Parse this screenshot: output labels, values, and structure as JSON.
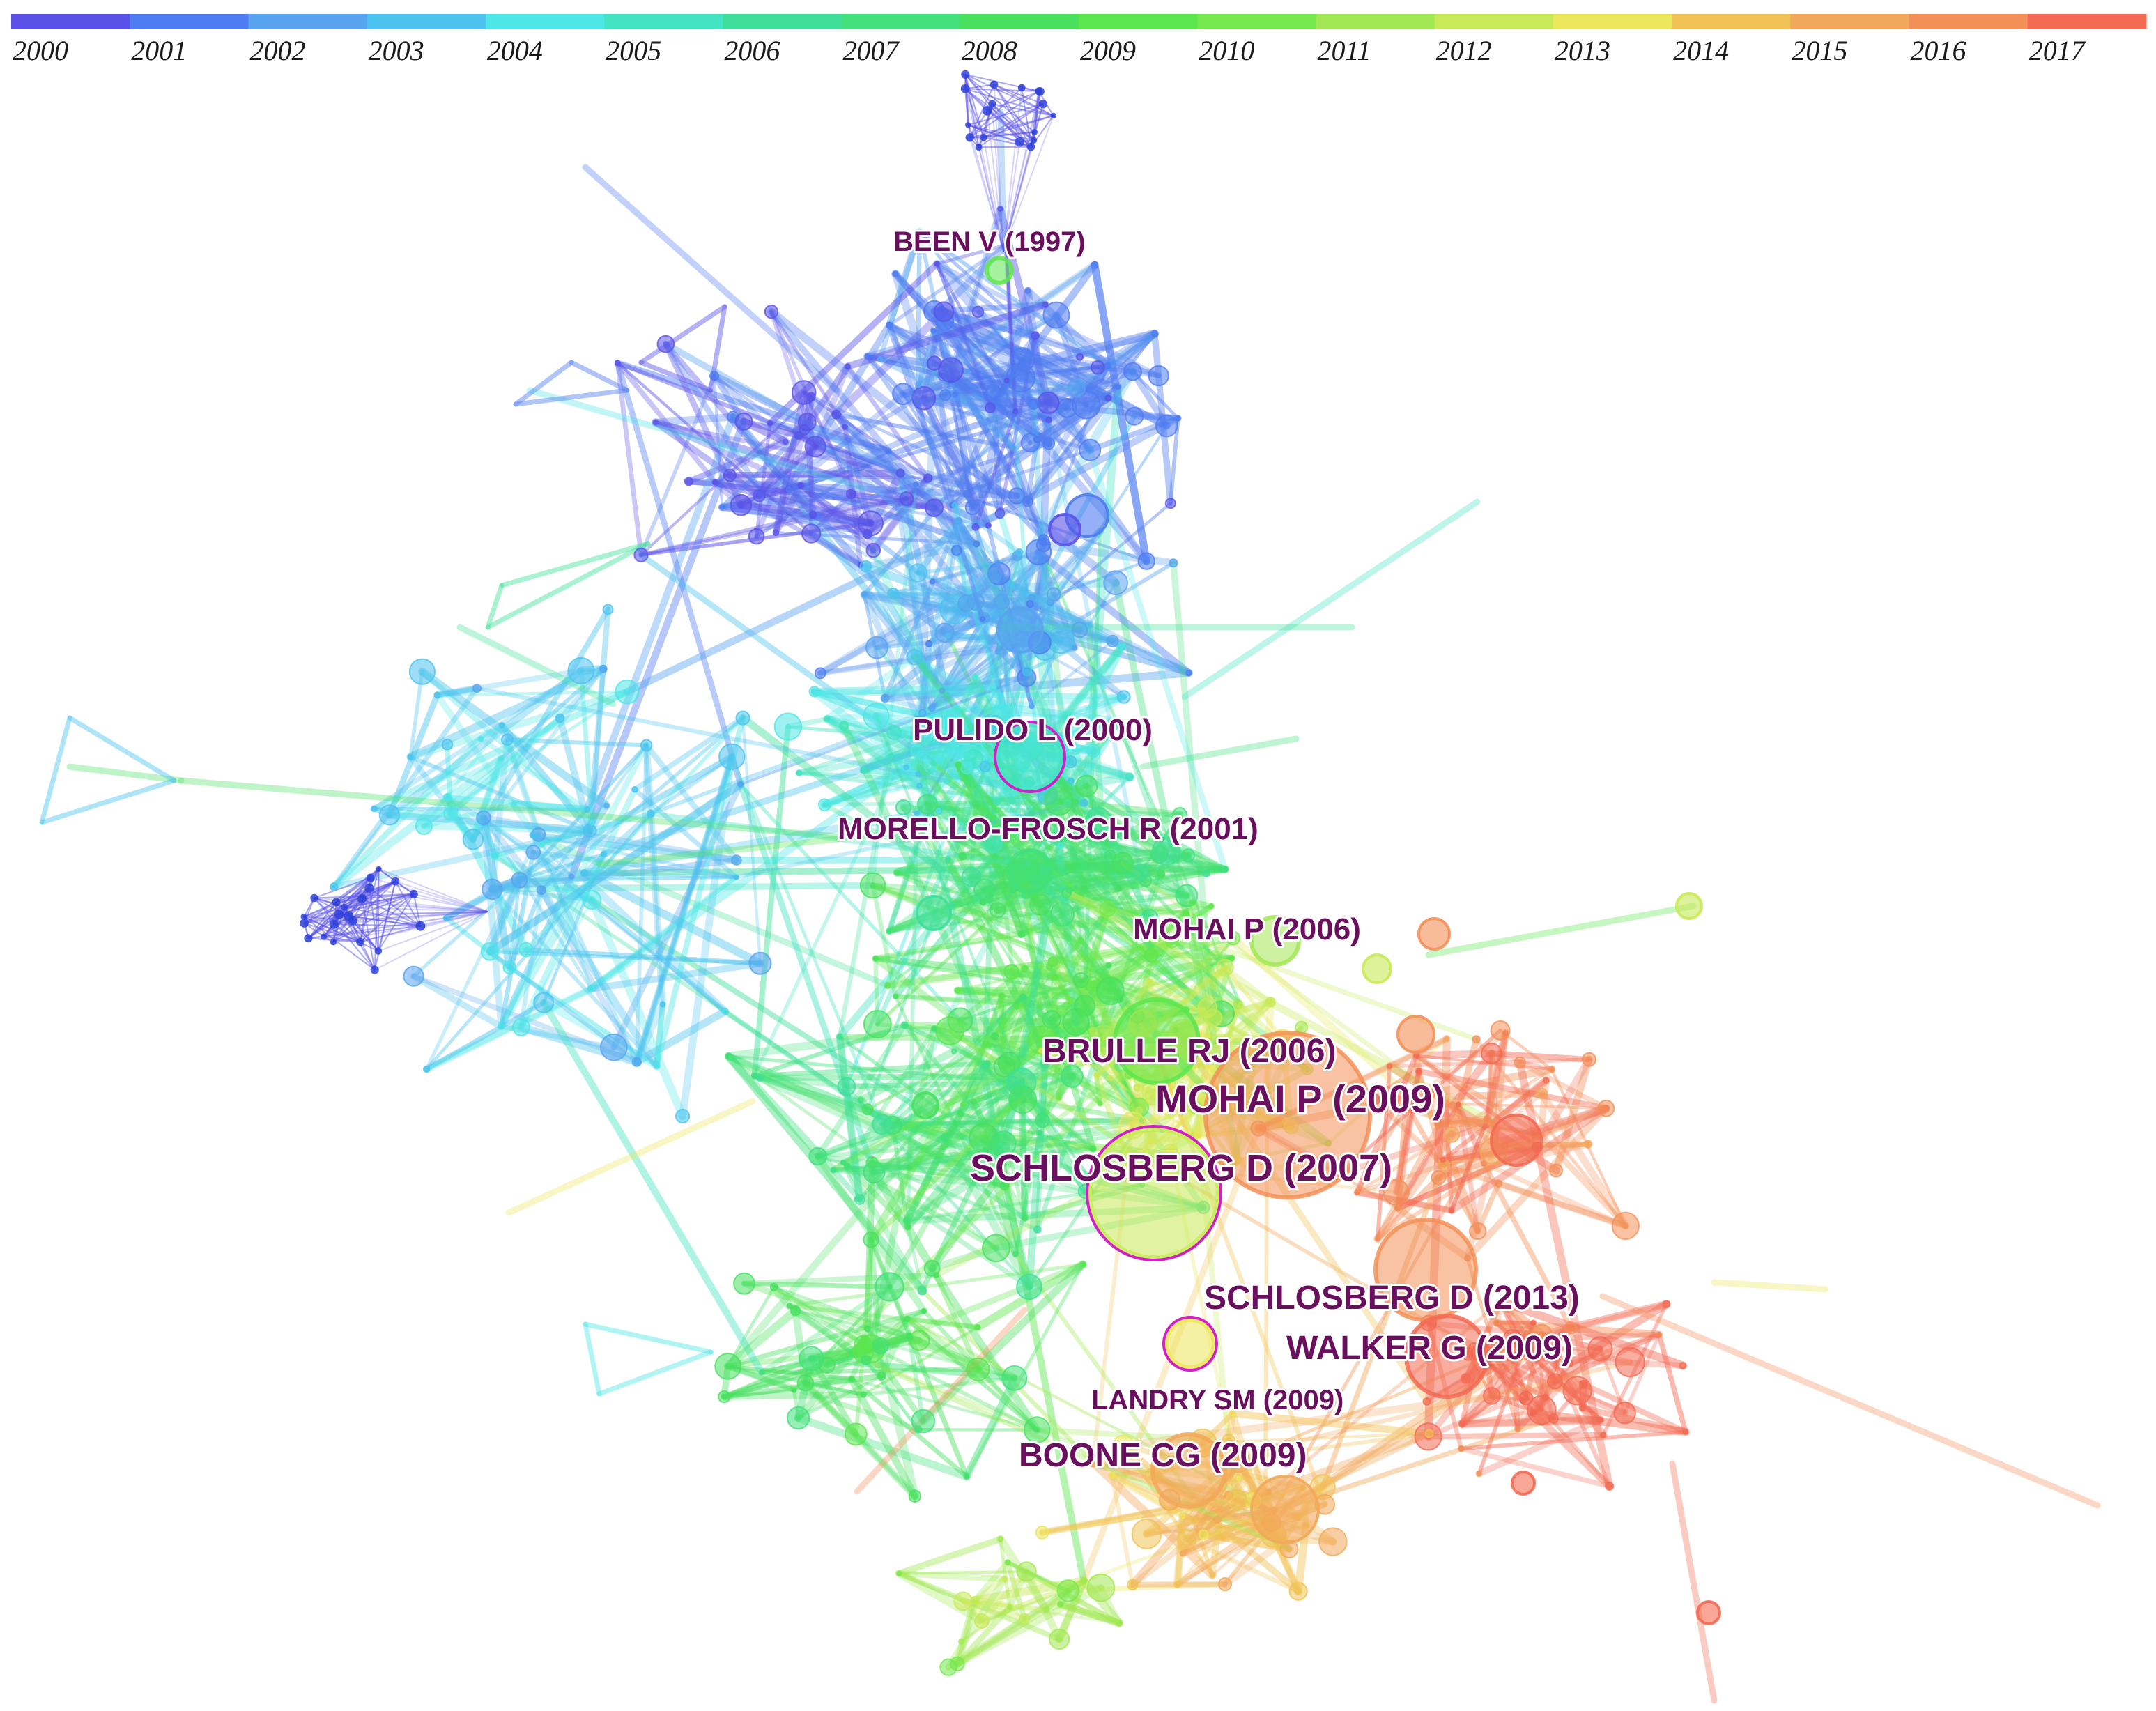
{
  "timeline": {
    "years": [
      "2000",
      "2001",
      "2002",
      "2003",
      "2004",
      "2005",
      "2006",
      "2007",
      "2008",
      "2009",
      "2010",
      "2011",
      "2012",
      "2013",
      "2014",
      "2015",
      "2016",
      "2017"
    ],
    "colors": [
      "#5a52e8",
      "#4f7cf0",
      "#58a3ef",
      "#4cc3ee",
      "#4fe6e6",
      "#44e3c2",
      "#3fdf9a",
      "#41e07a",
      "#49e060",
      "#5ce64e",
      "#74e84c",
      "#a2e854",
      "#c8ea58",
      "#ece65a",
      "#f1c356",
      "#f2a85a",
      "#f39058",
      "#f26a52"
    ]
  },
  "highlighted_nodes": [
    {
      "id": "been",
      "label": "BEEN V (1997)",
      "size": "small"
    },
    {
      "id": "pulido",
      "label": "PULIDO L (2000)",
      "size": "medium"
    },
    {
      "id": "morello",
      "label": "MORELLO-FROSCH R (2001)",
      "size": "medium"
    },
    {
      "id": "mohai2006",
      "label": "MOHAI P (2006)",
      "size": "medium"
    },
    {
      "id": "brulle",
      "label": "BRULLE RJ (2006)",
      "size": "medium"
    },
    {
      "id": "mohai2009",
      "label": "MOHAI P (2009)",
      "size": "large"
    },
    {
      "id": "schlos2007",
      "label": "SCHLOSBERG D (2007)",
      "size": "large"
    },
    {
      "id": "schlos2013",
      "label": "SCHLOSBERG D (2013)",
      "size": "medium"
    },
    {
      "id": "walker",
      "label": "WALKER G (2009)",
      "size": "medium"
    },
    {
      "id": "landry",
      "label": "LANDRY SM (2009)",
      "size": "small"
    },
    {
      "id": "boone",
      "label": "BOONE CG (2009)",
      "size": "medium"
    }
  ]
}
